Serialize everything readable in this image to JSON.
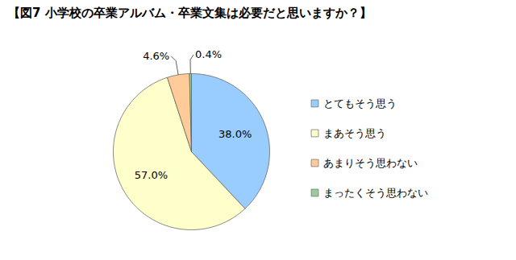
{
  "chart_data": {
    "type": "pie",
    "title": "【図7 小学校の卒業アルバム・卒業文集は必要だと思いますか？】",
    "categories": [
      "とてもそう思う",
      "まあそう思う",
      "あまりそう思わない",
      "まったくそう思わない"
    ],
    "values": [
      38.0,
      57.0,
      4.6,
      0.4
    ],
    "value_labels": [
      "38.0%",
      "57.0%",
      "4.6%",
      "0.4%"
    ],
    "colors": [
      "#99ccff",
      "#ffffcc",
      "#ffcc99",
      "#99cc99"
    ],
    "data_labels": true,
    "legend": "right"
  }
}
